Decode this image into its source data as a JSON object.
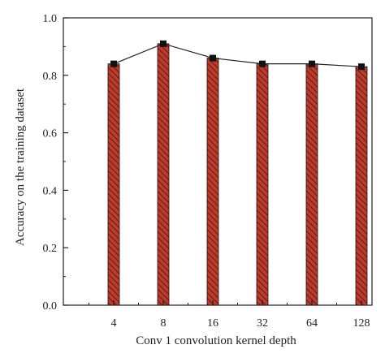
{
  "chart_data": {
    "type": "bar",
    "title": "",
    "xlabel": "Conv 1 convolution kernel depth",
    "ylabel": "Accuracy on the training dataset",
    "categories": [
      "4",
      "8",
      "16",
      "32",
      "64",
      "128"
    ],
    "series": [
      {
        "values": [
          0.84,
          0.91,
          0.86,
          0.84,
          0.84,
          0.83
        ]
      }
    ],
    "line_overlay": true,
    "ylim": [
      0.0,
      1.0
    ],
    "yticks": [
      "0.0",
      "0.2",
      "0.4",
      "0.6",
      "0.8",
      "1.0"
    ],
    "grid": false,
    "colors": {
      "bar_fill": "#c0392b",
      "hatch": "#3a1a10",
      "line": "#222222",
      "marker": "#111111"
    }
  }
}
